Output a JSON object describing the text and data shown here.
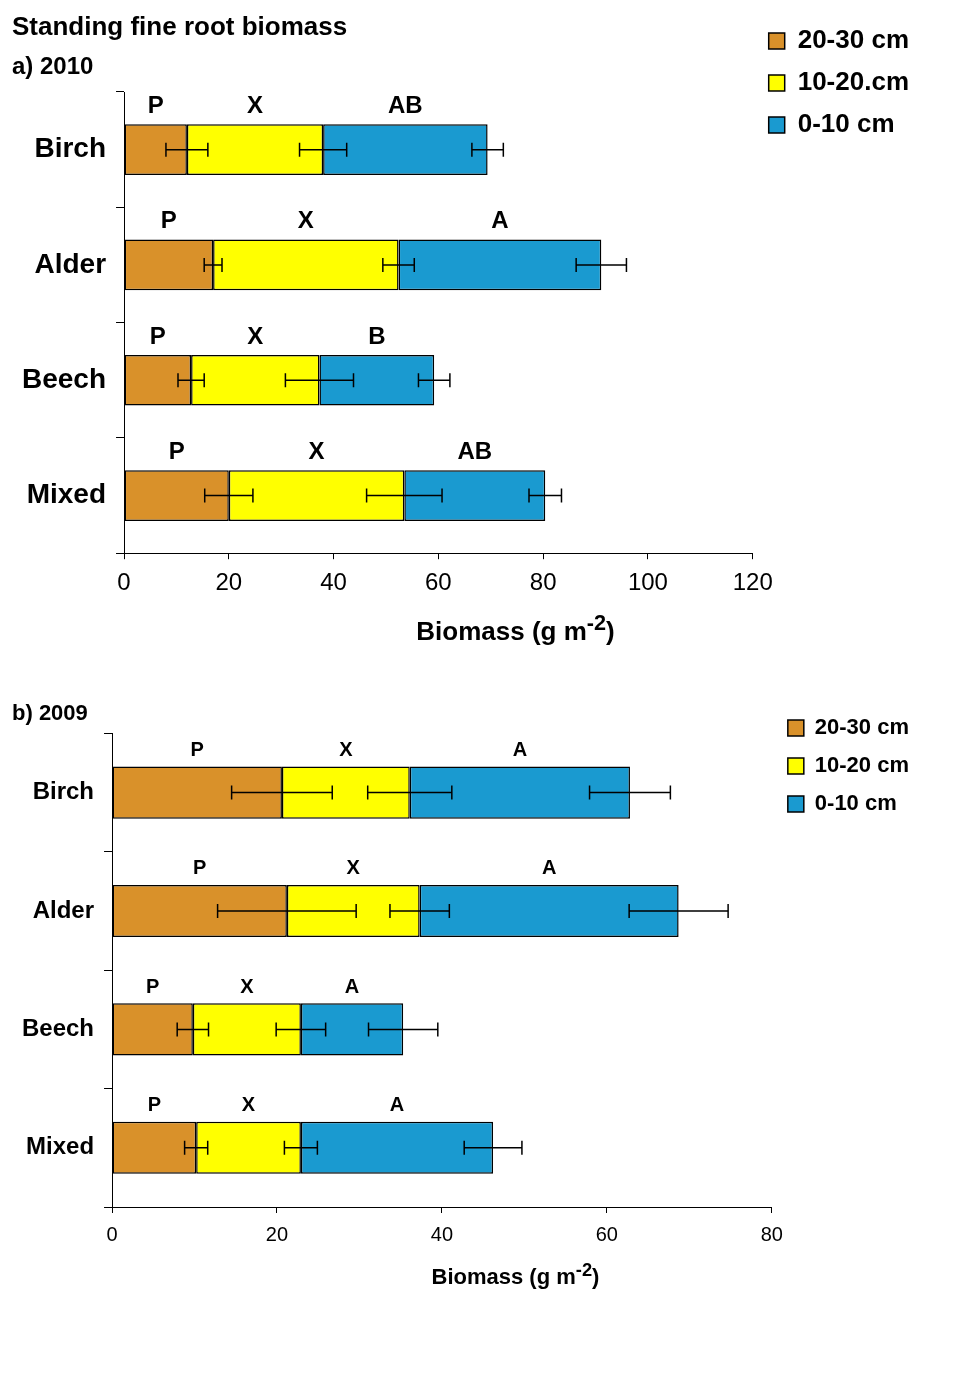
{
  "chart_data": [
    {
      "type": "bar",
      "title": "Standing fine root biomass",
      "subtitle": "a) 2010",
      "orientation": "horizontal",
      "stacked": true,
      "categories": [
        "Birch",
        "Alder",
        "Beech",
        "Mixed"
      ],
      "series": [
        {
          "name": "20-30 cm",
          "color": "#d9912a",
          "values": [
            12,
            17,
            12.8,
            20
          ],
          "errors": [
            4,
            1.7,
            2.5,
            4.6
          ]
        },
        {
          "name": "10-20.cm",
          "color": "#ffff00",
          "values": [
            26,
            35.4,
            24.5,
            33.5
          ],
          "errors": [
            4.5,
            3,
            6.5,
            7.2
          ]
        },
        {
          "name": "0-10 cm",
          "color": "#1a9ad0",
          "values": [
            31.4,
            38.7,
            21.9,
            26.9
          ],
          "errors": [
            3,
            4.8,
            3,
            3.1
          ]
        }
      ],
      "xlim": [
        0,
        120
      ],
      "xticks": [
        0,
        20,
        40,
        60,
        80,
        100,
        120
      ],
      "xlabel": "Biomass (g m$^{-2}$)",
      "grid": false,
      "legend": "top right",
      "annotations": [
        "P",
        "X",
        "AB",
        "P",
        "X",
        "A",
        "P",
        "X",
        "B",
        "P",
        "X",
        "AB"
      ]
    },
    {
      "type": "bar",
      "title": "b) 2009",
      "orientation": "horizontal",
      "stacked": true,
      "categories": [
        "Birch",
        "Alder",
        "Beech",
        "Mixed"
      ],
      "series": [
        {
          "name": "20-30 cm",
          "color": "#d9912a",
          "values": [
            20.6,
            21.2,
            9.8,
            10.2
          ],
          "errors": [
            6.1,
            8.4,
            1.9,
            1.4
          ]
        },
        {
          "name": "10-20 cm",
          "color": "#ffff00",
          "values": [
            15.5,
            16.1,
            13.1,
            12.7
          ],
          "errors": [
            5.1,
            3.6,
            3,
            2
          ]
        },
        {
          "name": "0-10 cm",
          "color": "#1a9ad0",
          "values": [
            26.7,
            31.4,
            12.4,
            23.3
          ],
          "errors": [
            4.9,
            6,
            4.2,
            3.5
          ]
        }
      ],
      "xlim": [
        0,
        80
      ],
      "xticks": [
        0,
        20,
        40,
        60,
        80
      ],
      "xlabel": "Biomass (g m$^{-2}$)",
      "grid": false,
      "legend": "top right",
      "annotations": [
        "P",
        "X",
        "A",
        "P",
        "X",
        "A",
        "P",
        "X",
        "A",
        "P",
        "X",
        "A"
      ]
    }
  ]
}
